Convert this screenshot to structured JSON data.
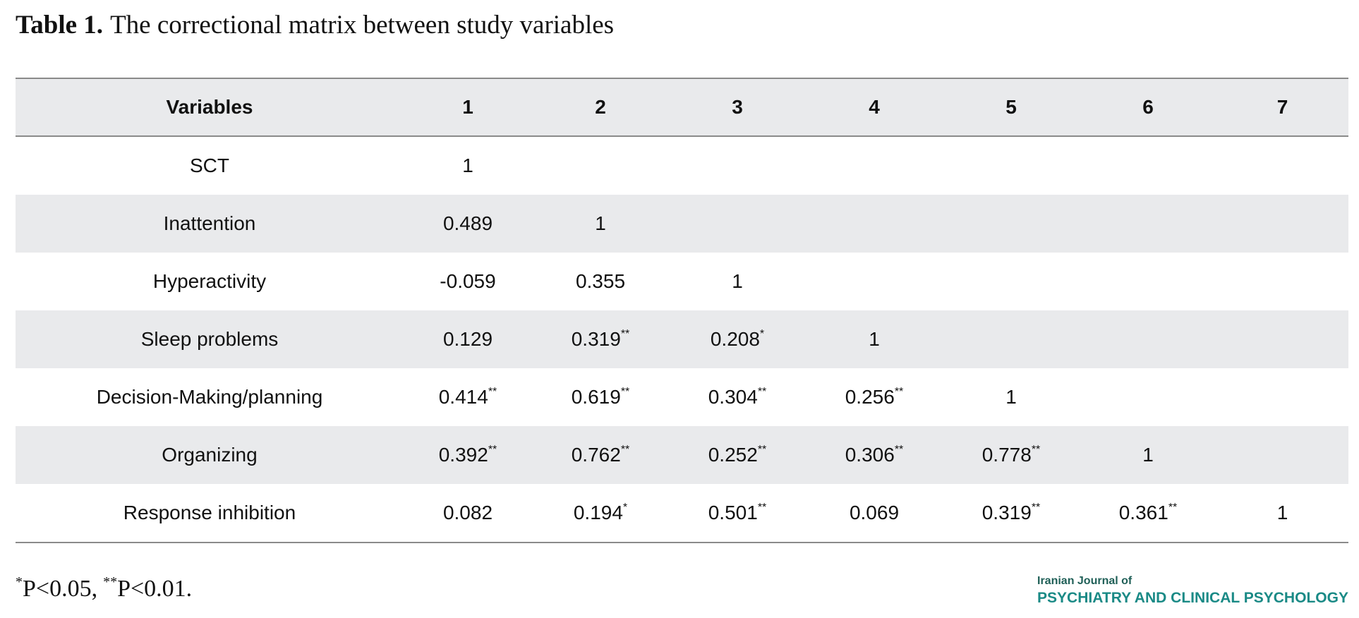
{
  "title": {
    "label": "Table 1.",
    "text": "The correctional matrix between study variables"
  },
  "table": {
    "header": [
      "Variables",
      "1",
      "2",
      "3",
      "4",
      "5",
      "6",
      "7"
    ],
    "rows": [
      {
        "variable": "SCT",
        "values": [
          "1"
        ]
      },
      {
        "variable": "Inattention",
        "values": [
          "0.489",
          "1"
        ]
      },
      {
        "variable": "Hyperactivity",
        "values": [
          "-0.059",
          "0.355",
          "1"
        ]
      },
      {
        "variable": "Sleep problems",
        "values": [
          "0.129",
          {
            "text": "0.319",
            "sup": "**"
          },
          {
            "text": "0.208",
            "sup": "*"
          },
          "1"
        ]
      },
      {
        "variable": "Decision-Making/planning",
        "values": [
          {
            "text": "0.414",
            "sup": "**"
          },
          {
            "text": "0.619",
            "sup": "**"
          },
          {
            "text": "0.304",
            "sup": "**"
          },
          {
            "text": "0.256",
            "sup": "**"
          },
          "1"
        ]
      },
      {
        "variable": "Organizing",
        "values": [
          {
            "text": "0.392",
            "sup": "**"
          },
          {
            "text": "0.762",
            "sup": "**"
          },
          {
            "text": "0.252",
            "sup": "**"
          },
          {
            "text": "0.306",
            "sup": "**"
          },
          {
            "text": "0.778",
            "sup": "**"
          },
          "1"
        ]
      },
      {
        "variable": "Response inhibition",
        "values": [
          "0.082",
          {
            "text": "0.194",
            "sup": "*"
          },
          {
            "text": "0.501",
            "sup": "**"
          },
          "0.069",
          {
            "text": "0.319",
            "sup": "**"
          },
          {
            "text": "0.361",
            "sup": "**"
          },
          "1"
        ]
      }
    ]
  },
  "footnote": [
    {
      "sup": "*",
      "text": "P<0.05,"
    },
    {
      "sup": "**",
      "text": "P<0.01."
    }
  ],
  "logo": {
    "line1": "Iranian Journal of",
    "line2": "PSYCHIATRY AND CLINICAL PSYCHOLOGY"
  }
}
